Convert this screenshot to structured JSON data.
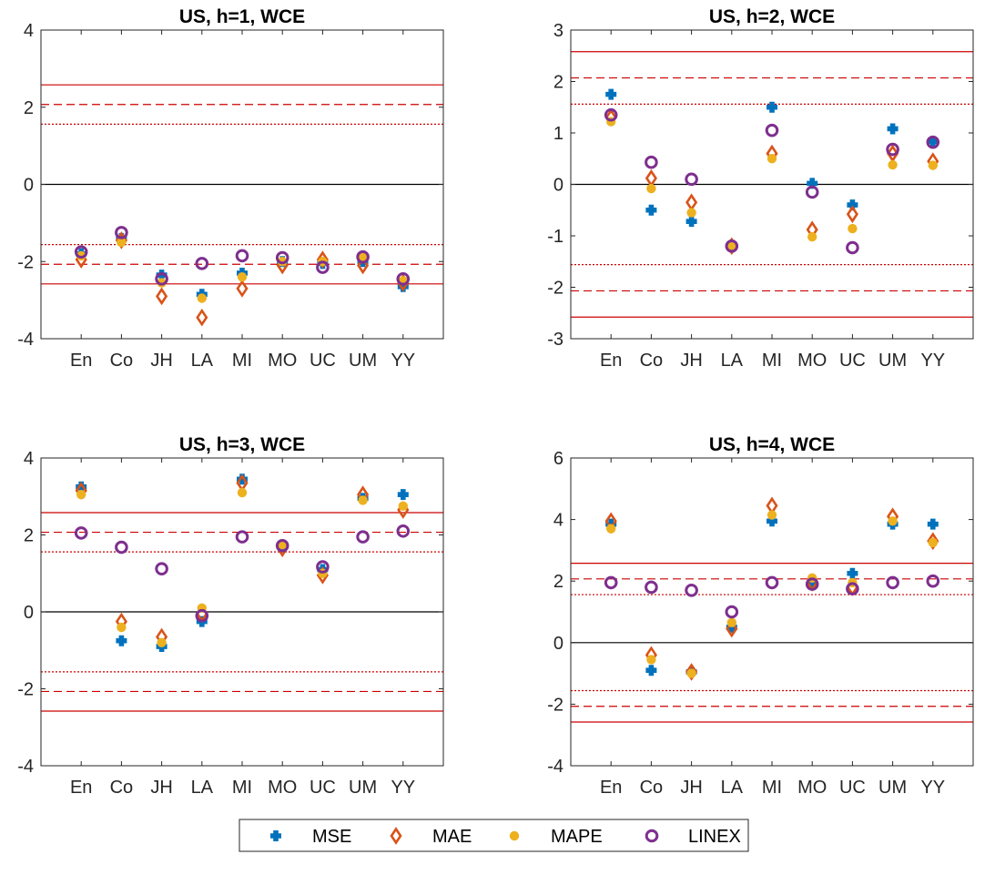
{
  "figure": {
    "legend": {
      "entries": [
        {
          "name": "MSE",
          "marker": "plus",
          "color": "#0072BD"
        },
        {
          "name": "MAE",
          "marker": "diamond",
          "color": "#D95319"
        },
        {
          "name": "MAPE",
          "marker": "dot",
          "color": "#EDB120"
        },
        {
          "name": "LINEX",
          "marker": "circle",
          "color": "#7E2F8E"
        }
      ],
      "placement": "bottom-center"
    }
  },
  "chart_data": [
    {
      "type": "scatter",
      "title": "US, h=1, WCE",
      "categories": [
        "En",
        "Co",
        "JH",
        "LA",
        "MI",
        "MO",
        "UC",
        "UM",
        "YY"
      ],
      "ylim": [
        -4,
        4
      ],
      "yticks": [
        -4,
        -2,
        0,
        2,
        4
      ],
      "reference_lines": [
        {
          "value": 0,
          "style": "solid",
          "color": "#000000"
        },
        {
          "value": 2.58,
          "style": "solid",
          "color": "#cc0000"
        },
        {
          "value": -2.58,
          "style": "solid",
          "color": "#cc0000"
        },
        {
          "value": 2.07,
          "style": "dashed",
          "color": "#cc0000"
        },
        {
          "value": -2.07,
          "style": "dashed",
          "color": "#cc0000"
        },
        {
          "value": 1.56,
          "style": "dotted",
          "color": "#cc0000"
        },
        {
          "value": -1.56,
          "style": "dotted",
          "color": "#cc0000"
        }
      ],
      "series": [
        {
          "name": "MSE",
          "values": [
            -1.8,
            -1.4,
            -2.35,
            -2.85,
            -2.3,
            -2.0,
            -2.05,
            -2.0,
            -2.65
          ]
        },
        {
          "name": "MAE",
          "values": [
            -1.95,
            -1.45,
            -2.9,
            -3.45,
            -2.7,
            -2.1,
            -1.95,
            -2.1,
            -2.55
          ]
        },
        {
          "name": "MAPE",
          "values": [
            -1.85,
            -1.5,
            -2.55,
            -2.95,
            -2.4,
            -2.0,
            -2.0,
            -1.9,
            -2.5
          ]
        },
        {
          "name": "LINEX",
          "values": [
            -1.75,
            -1.25,
            -2.45,
            -2.05,
            -1.85,
            -1.9,
            -2.15,
            -1.88,
            -2.45
          ]
        }
      ]
    },
    {
      "type": "scatter",
      "title": "US, h=2, WCE",
      "categories": [
        "En",
        "Co",
        "JH",
        "LA",
        "MI",
        "MO",
        "UC",
        "UM",
        "YY"
      ],
      "ylim": [
        -3,
        3
      ],
      "yticks": [
        -3,
        -2,
        -1,
        0,
        1,
        2,
        3
      ],
      "reference_lines": [
        {
          "value": 0,
          "style": "solid",
          "color": "#000000"
        },
        {
          "value": 2.58,
          "style": "solid",
          "color": "#cc0000"
        },
        {
          "value": -2.58,
          "style": "solid",
          "color": "#cc0000"
        },
        {
          "value": 2.07,
          "style": "dashed",
          "color": "#cc0000"
        },
        {
          "value": -2.07,
          "style": "dashed",
          "color": "#cc0000"
        },
        {
          "value": 1.56,
          "style": "dotted",
          "color": "#cc0000"
        },
        {
          "value": -1.56,
          "style": "dotted",
          "color": "#cc0000"
        }
      ],
      "series": [
        {
          "name": "MSE",
          "values": [
            1.75,
            -0.5,
            -0.72,
            -1.2,
            1.5,
            0.02,
            -0.4,
            1.08,
            0.83
          ]
        },
        {
          "name": "MAE",
          "values": [
            1.3,
            0.12,
            -0.35,
            -1.2,
            0.6,
            -0.88,
            -0.58,
            0.6,
            0.45
          ]
        },
        {
          "name": "MAPE",
          "values": [
            1.22,
            -0.08,
            -0.55,
            -1.18,
            0.5,
            -1.02,
            -0.86,
            0.38,
            0.37
          ]
        },
        {
          "name": "LINEX",
          "values": [
            1.35,
            0.43,
            0.1,
            -1.2,
            1.05,
            -0.15,
            -1.23,
            0.68,
            0.82
          ]
        }
      ]
    },
    {
      "type": "scatter",
      "title": "US, h=3, WCE",
      "categories": [
        "En",
        "Co",
        "JH",
        "LA",
        "MI",
        "MO",
        "UC",
        "UM",
        "YY"
      ],
      "ylim": [
        -4,
        4
      ],
      "yticks": [
        -4,
        -2,
        0,
        2,
        4
      ],
      "reference_lines": [
        {
          "value": 0,
          "style": "solid",
          "color": "#000000"
        },
        {
          "value": 2.58,
          "style": "solid",
          "color": "#cc0000"
        },
        {
          "value": -2.58,
          "style": "solid",
          "color": "#cc0000"
        },
        {
          "value": 2.07,
          "style": "dashed",
          "color": "#cc0000"
        },
        {
          "value": -2.07,
          "style": "dashed",
          "color": "#cc0000"
        },
        {
          "value": 1.56,
          "style": "dotted",
          "color": "#cc0000"
        },
        {
          "value": -1.56,
          "style": "dotted",
          "color": "#cc0000"
        }
      ],
      "series": [
        {
          "name": "MSE",
          "values": [
            3.25,
            -0.75,
            -0.9,
            -0.25,
            3.45,
            1.7,
            1.1,
            2.95,
            3.05
          ]
        },
        {
          "name": "MAE",
          "values": [
            3.15,
            -0.25,
            -0.65,
            -0.05,
            3.35,
            1.65,
            0.95,
            3.05,
            2.65
          ]
        },
        {
          "name": "MAPE",
          "values": [
            3.05,
            -0.4,
            -0.8,
            0.1,
            3.1,
            1.75,
            1.0,
            2.9,
            2.75
          ]
        },
        {
          "name": "LINEX",
          "values": [
            2.05,
            1.68,
            1.12,
            -0.1,
            1.95,
            1.72,
            1.17,
            1.95,
            2.1
          ]
        }
      ]
    },
    {
      "type": "scatter",
      "title": "US, h=4, WCE",
      "categories": [
        "En",
        "Co",
        "JH",
        "LA",
        "MI",
        "MO",
        "UC",
        "UM",
        "YY"
      ],
      "ylim": [
        -4,
        6
      ],
      "yticks": [
        -4,
        -2,
        0,
        2,
        4,
        6
      ],
      "reference_lines": [
        {
          "value": 0,
          "style": "solid",
          "color": "#000000"
        },
        {
          "value": 2.58,
          "style": "solid",
          "color": "#cc0000"
        },
        {
          "value": -2.58,
          "style": "solid",
          "color": "#cc0000"
        },
        {
          "value": 2.07,
          "style": "dashed",
          "color": "#cc0000"
        },
        {
          "value": -2.07,
          "style": "dashed",
          "color": "#cc0000"
        },
        {
          "value": 1.56,
          "style": "dotted",
          "color": "#cc0000"
        },
        {
          "value": -1.56,
          "style": "dotted",
          "color": "#cc0000"
        }
      ],
      "series": [
        {
          "name": "MSE",
          "values": [
            3.85,
            -0.9,
            -0.95,
            0.5,
            3.95,
            1.9,
            2.25,
            3.85,
            3.85
          ]
        },
        {
          "name": "MAE",
          "values": [
            3.95,
            -0.4,
            -0.95,
            0.45,
            4.45,
            1.95,
            1.8,
            4.1,
            3.3
          ]
        },
        {
          "name": "MAPE",
          "values": [
            3.7,
            -0.55,
            -1.0,
            0.65,
            4.15,
            2.1,
            1.95,
            3.95,
            3.25
          ]
        },
        {
          "name": "LINEX",
          "values": [
            1.95,
            1.8,
            1.7,
            1.0,
            1.95,
            1.9,
            1.75,
            1.95,
            2.0
          ]
        }
      ]
    }
  ]
}
